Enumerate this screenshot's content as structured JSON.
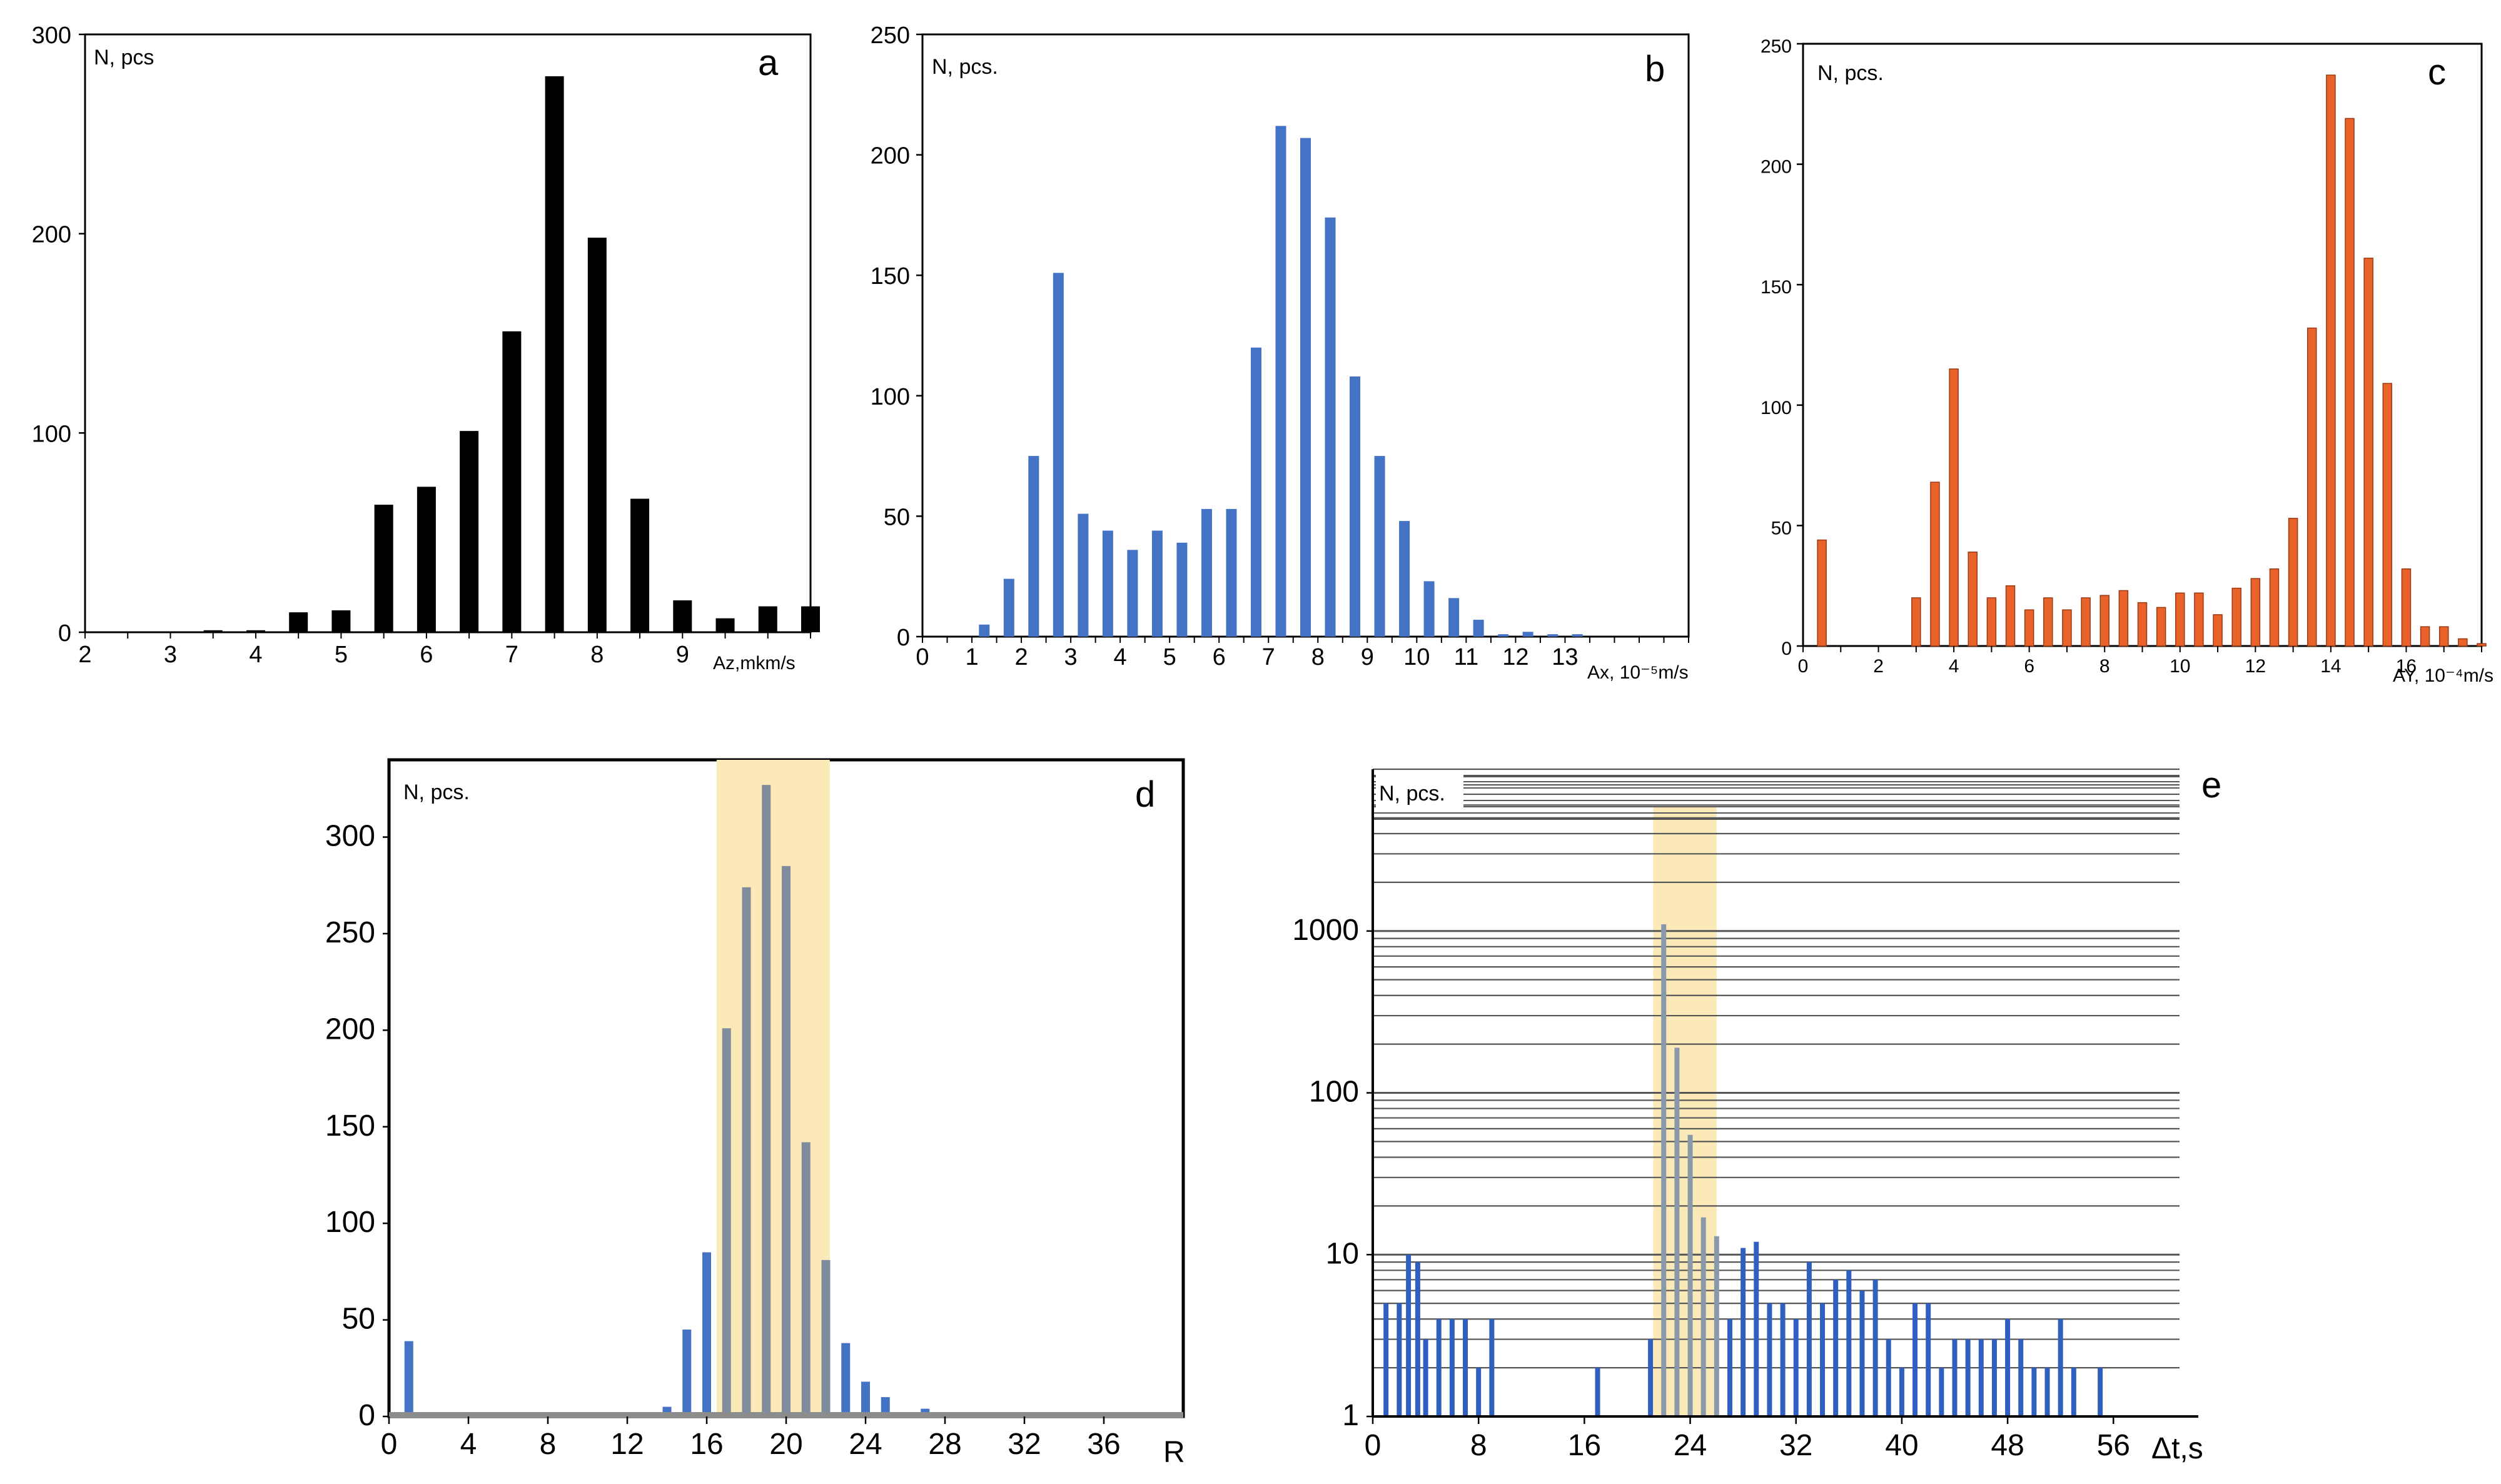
{
  "chart_data": [
    {
      "id": "a",
      "type": "bar",
      "panel_label": "a",
      "ylabel": "N, pcs",
      "xlabel": "Az,mkm/s",
      "xlim": [
        2,
        10.5
      ],
      "ylim": [
        0,
        300
      ],
      "xticks": [
        2,
        3,
        4,
        5,
        6,
        7,
        8,
        9
      ],
      "yticks": [
        0,
        100,
        200,
        300
      ],
      "color": "#000000",
      "x": [
        3.5,
        4.0,
        4.5,
        5.0,
        5.5,
        6.0,
        6.5,
        7.0,
        7.5,
        8.0,
        8.5,
        9.0,
        9.5,
        10.0,
        10.5
      ],
      "values": [
        1,
        1,
        10,
        11,
        64,
        73,
        101,
        151,
        279,
        198,
        67,
        16,
        7,
        13,
        13
      ]
    },
    {
      "id": "b",
      "type": "bar",
      "panel_label": "b",
      "ylabel": "N, pcs.",
      "xlabel": "Ax, 10⁻⁵m/s",
      "xlim": [
        0,
        15.5
      ],
      "ylim": [
        0,
        250
      ],
      "xticks": [
        0,
        1,
        2,
        3,
        4,
        5,
        6,
        7,
        8,
        9,
        10,
        11,
        12,
        13
      ],
      "yticks": [
        0,
        50,
        100,
        150,
        200,
        250
      ],
      "color": "#4472C4",
      "x": [
        1.25,
        1.75,
        2.25,
        2.75,
        3.25,
        3.75,
        4.25,
        4.75,
        5.25,
        5.75,
        6.25,
        6.75,
        7.25,
        7.75,
        8.25,
        8.75,
        9.25,
        9.75,
        10.25,
        10.75,
        11.25,
        11.75,
        12.25,
        12.75,
        13.25
      ],
      "values": [
        5,
        24,
        75,
        151,
        51,
        44,
        36,
        44,
        39,
        53,
        53,
        120,
        212,
        207,
        174,
        108,
        75,
        48,
        23,
        16,
        7,
        1,
        2,
        1,
        1
      ]
    },
    {
      "id": "c",
      "type": "bar",
      "panel_label": "c",
      "ylabel": "N, pcs.",
      "xlabel": "AY, 10⁻⁴m/s",
      "xlim": [
        0,
        18
      ],
      "ylim": [
        0,
        250
      ],
      "xticks": [
        0,
        2,
        4,
        6,
        8,
        10,
        12,
        14,
        16
      ],
      "yticks": [
        0,
        50,
        100,
        150,
        200,
        250
      ],
      "color": "#E8622A",
      "x": [
        0.5,
        3.0,
        3.5,
        4.0,
        4.5,
        5.0,
        5.5,
        6.0,
        6.5,
        7.0,
        7.5,
        8.0,
        8.5,
        9.0,
        9.5,
        10.0,
        10.5,
        11.0,
        11.5,
        12.0,
        12.5,
        13.0,
        13.5,
        14.0,
        14.5,
        15.0,
        15.5,
        16.0,
        16.5,
        17.0,
        17.5,
        18.0
      ],
      "values": [
        44,
        20,
        68,
        115,
        39,
        20,
        25,
        15,
        20,
        15,
        20,
        21,
        23,
        18,
        16,
        22,
        22,
        13,
        24,
        28,
        32,
        53,
        132,
        237,
        219,
        161,
        109,
        32,
        8,
        8,
        3,
        1
      ]
    },
    {
      "id": "d",
      "type": "bar",
      "panel_label": "d",
      "ylabel": "N, pcs.",
      "xlabel": "R",
      "xlim": [
        0,
        40
      ],
      "ylim": [
        0,
        340
      ],
      "xticks": [
        0,
        4,
        8,
        12,
        16,
        20,
        24,
        28,
        32,
        36
      ],
      "yticks": [
        0,
        50,
        100,
        150,
        200,
        250,
        300
      ],
      "highlight_range": [
        16.5,
        22.2
      ],
      "color": "#4472C4",
      "highlight_bar_color": "#7F8C9D",
      "highlight_color": "#FCE9B8",
      "x": [
        1,
        2,
        3,
        4,
        12,
        13,
        14,
        15,
        16,
        17,
        18,
        19,
        20,
        21,
        22,
        23,
        24,
        25,
        26,
        27,
        28,
        29,
        30
      ],
      "values": [
        39,
        2,
        1,
        1,
        2,
        2,
        5,
        45,
        85,
        201,
        274,
        327,
        285,
        142,
        81,
        38,
        18,
        10,
        2,
        4,
        1,
        1,
        1
      ]
    },
    {
      "id": "e",
      "type": "bar",
      "panel_label": "e",
      "ylabel": "N, pcs.",
      "xlabel": "Δt,s",
      "xlim": [
        0,
        61
      ],
      "ylim_log": [
        1,
        10000
      ],
      "scale": "log",
      "xticks": [
        0,
        8,
        16,
        24,
        32,
        40,
        48,
        56
      ],
      "yticks": [
        1,
        10,
        100,
        1000
      ],
      "highlight_range": [
        21.2,
        26.0
      ],
      "color": "#2F5FBF",
      "highlight_bar_color": "#8A99AA",
      "highlight_color": "#FCE9B8",
      "x": [
        1,
        2,
        2.7,
        3.4,
        4,
        5,
        6,
        7,
        8,
        9,
        17,
        21,
        22,
        23,
        24,
        25,
        26,
        27,
        28,
        29,
        30,
        31,
        32,
        33,
        34,
        35,
        36,
        37,
        38,
        39,
        40,
        41,
        42,
        43,
        44,
        45,
        46,
        47,
        48,
        49,
        50,
        51,
        52,
        53,
        55
      ],
      "values": [
        5,
        5,
        10,
        9,
        3,
        4,
        4,
        4,
        2,
        4,
        2,
        3,
        1100,
        190,
        55,
        17,
        13,
        4,
        11,
        12,
        5,
        5,
        4,
        9,
        5,
        7,
        8,
        6,
        7,
        3,
        2,
        5,
        5,
        2,
        3,
        3,
        3,
        3,
        4,
        3,
        2,
        2,
        4,
        2,
        2
      ]
    }
  ]
}
